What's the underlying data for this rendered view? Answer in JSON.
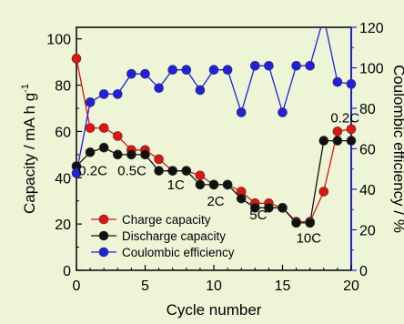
{
  "colors": {
    "background": "#eef5d6",
    "charge": "#e8110f",
    "discharge": "#111111",
    "coulombic": "#1f1fe6"
  },
  "chart_data": {
    "type": "line",
    "xlabel": "Cycle number",
    "ylabel": "Capacity / mA h g",
    "ylabel_superscript": "-1",
    "y2label": "Coulombic efficiency / %",
    "xlim": [
      0,
      20
    ],
    "ylim": [
      0,
      105
    ],
    "y2lim": [
      0,
      120
    ],
    "xticks": [
      0,
      5,
      10,
      15,
      20
    ],
    "yticks": [
      0,
      20,
      40,
      60,
      80,
      100
    ],
    "y2ticks": [
      0,
      20,
      40,
      60,
      80,
      100,
      120
    ],
    "grid": false,
    "legend_position": "bottom-left",
    "series": [
      {
        "name": "Charge capacity",
        "axis": "left",
        "x": [
          0,
          1,
          2,
          3,
          4,
          5,
          6,
          7,
          8,
          9,
          10,
          11,
          12,
          13,
          14,
          15,
          16,
          17,
          18,
          19,
          20
        ],
        "values": [
          91.5,
          61.5,
          61.5,
          58,
          52,
          52,
          48,
          43,
          43,
          41,
          37,
          37,
          34,
          29,
          29,
          27,
          21,
          21,
          34,
          60,
          61
        ]
      },
      {
        "name": "Discharge capacity",
        "axis": "left",
        "x": [
          0,
          1,
          2,
          3,
          4,
          5,
          6,
          7,
          8,
          9,
          10,
          11,
          12,
          13,
          14,
          15,
          16,
          17,
          18,
          19,
          20
        ],
        "values": [
          45,
          51,
          53,
          50,
          50,
          50,
          43,
          43,
          43,
          37,
          37,
          37,
          31,
          27,
          27,
          27,
          20.5,
          20.5,
          56,
          56,
          56
        ]
      },
      {
        "name": "Coulombic efficiency",
        "axis": "right",
        "x": [
          0,
          1,
          2,
          3,
          4,
          5,
          6,
          7,
          8,
          9,
          10,
          11,
          12,
          13,
          14,
          15,
          16,
          17,
          18,
          19,
          20
        ],
        "values": [
          48,
          83,
          87,
          87,
          97,
          97,
          90,
          99,
          99,
          89,
          99,
          99,
          78,
          101,
          101,
          78,
          101,
          101,
          125,
          93,
          92
        ]
      }
    ],
    "annotations": [
      {
        "text": "0.2C",
        "x": 0.15,
        "y": 41
      },
      {
        "text": "0.5C",
        "x": 3.0,
        "y": 41
      },
      {
        "text": "1C",
        "x": 6.6,
        "y": 35
      },
      {
        "text": "2C",
        "x": 9.5,
        "y": 28
      },
      {
        "text": "5C",
        "x": 12.6,
        "y": 22
      },
      {
        "text": "10C",
        "x": 16.0,
        "y": 12
      },
      {
        "text": "0.2C",
        "x": 18.5,
        "y": 64
      }
    ]
  }
}
